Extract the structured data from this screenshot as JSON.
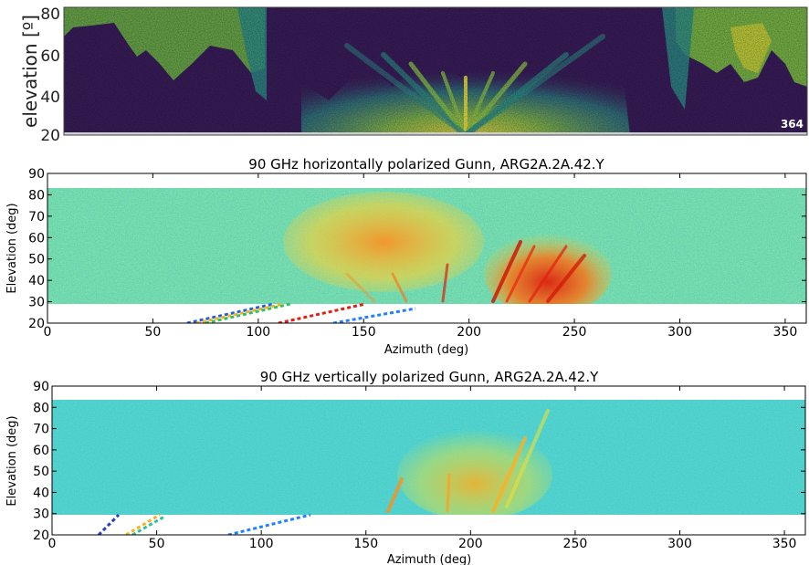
{
  "chart_data": [
    {
      "type": "heatmap",
      "title": "",
      "xlabel": "",
      "ylabel": "elevation [º]",
      "yticks": [
        "80",
        "60",
        "40",
        "20"
      ],
      "ylim": [
        20,
        85
      ],
      "annotation": "364",
      "colormap": "viridis"
    },
    {
      "type": "heatmap",
      "title": "90 GHz horizontally polarized Gunn, ARG2A.2A.42.Y",
      "xlabel": "Azimuth (deg)",
      "ylabel": "Elevation (deg)",
      "xlim": [
        0,
        360
      ],
      "ylim": [
        20,
        90
      ],
      "xticks": [
        "0",
        "50",
        "100",
        "150",
        "200",
        "250",
        "300",
        "350"
      ],
      "yticks": [
        "20",
        "30",
        "40",
        "50",
        "60",
        "70",
        "80",
        "90"
      ],
      "data_elevation_range": [
        30,
        84
      ],
      "colormap": "jet",
      "hotspot_azimuth_range": [
        200,
        262
      ]
    },
    {
      "type": "heatmap",
      "title": "90 GHz vertically polarized Gunn, ARG2A.2A.42.Y",
      "xlabel": "Azimuth (deg)",
      "ylabel": "Elevation (deg)",
      "xlim": [
        0,
        360
      ],
      "ylim": [
        20,
        90
      ],
      "xticks": [
        "0",
        "50",
        "100",
        "150",
        "200",
        "250",
        "300",
        "350"
      ],
      "yticks": [
        "20",
        "30",
        "40",
        "50",
        "60",
        "70",
        "80",
        "90"
      ],
      "data_elevation_range": [
        30,
        84
      ],
      "colormap": "jet",
      "hotspot_azimuth_range": [
        160,
        240
      ]
    }
  ],
  "colors": {
    "viridis_bg": "#3a1d5c",
    "viridis_mid": "#2e8f8a",
    "viridis_hi": "#8dc64a",
    "viridis_top": "#f0e442",
    "jet_bg": "#5fe0b0",
    "jet_cool": "#2080ff",
    "jet_warm": "#ffb020",
    "jet_hot": "#e02010"
  }
}
